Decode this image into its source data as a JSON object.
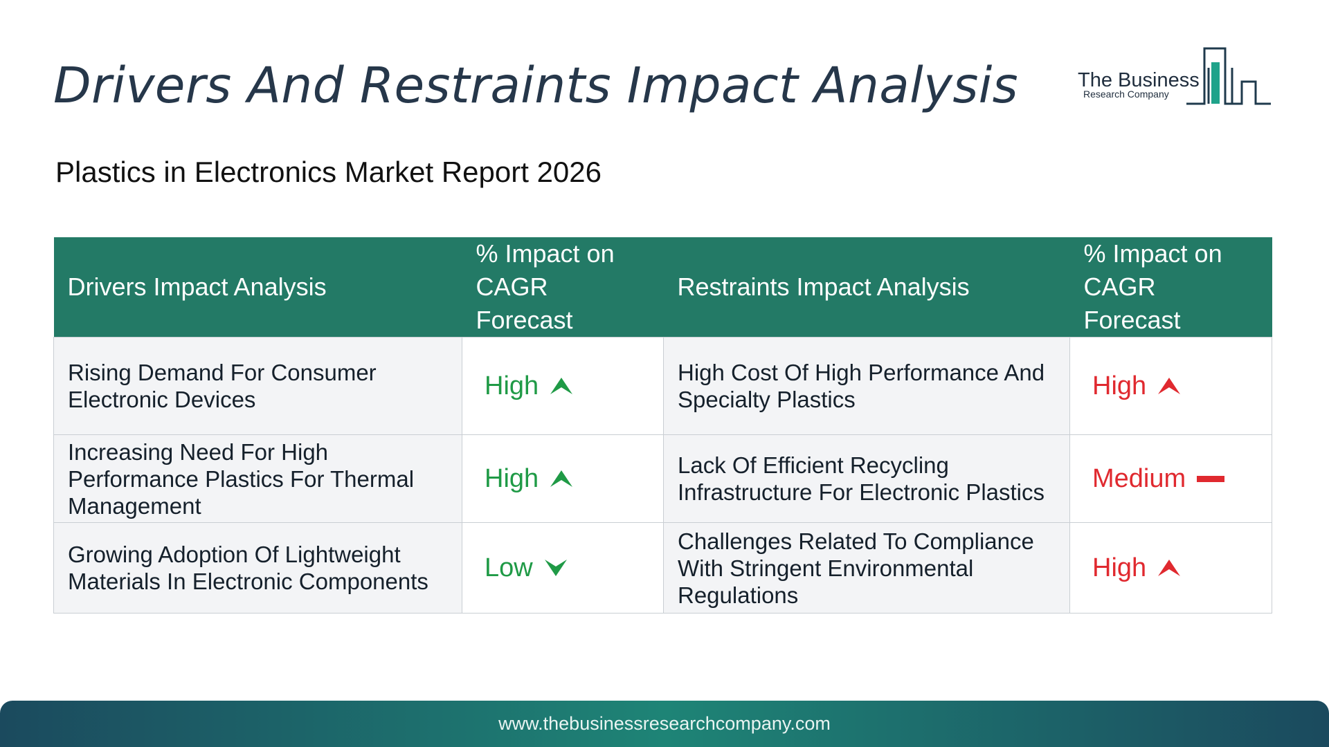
{
  "header": {
    "title": "Drivers And Restraints Impact Analysis",
    "subtitle": "Plastics in Electronics Market Report 2026"
  },
  "logo": {
    "line1": "The Business",
    "line2": "Research Company"
  },
  "table": {
    "columns": [
      "Drivers Impact Analysis",
      "% Impact on CAGR Forecast",
      "Restraints Impact Analysis",
      "% Impact on CAGR Forecast"
    ],
    "rows": [
      {
        "driver": "Rising Demand For Consumer Electronic Devices",
        "driver_impact": "High",
        "driver_icon": "arrow-up-icon",
        "restraint": "High Cost Of High Performance And Specialty Plastics",
        "restraint_impact": "High",
        "restraint_icon": "arrow-up-icon"
      },
      {
        "driver": "Increasing Need For High Performance Plastics For Thermal Management",
        "driver_impact": "High",
        "driver_icon": "arrow-up-icon",
        "restraint": "Lack Of Efficient Recycling Infrastructure For Electronic Plastics",
        "restraint_impact": "Medium",
        "restraint_icon": "dash-icon"
      },
      {
        "driver": "Growing Adoption Of Lightweight Materials In Electronic Components",
        "driver_impact": "Low",
        "driver_icon": "arrow-down-icon",
        "restraint": "Challenges Related To Compliance With Stringent Environmental Regulations",
        "restraint_impact": "High",
        "restraint_icon": "arrow-up-icon"
      }
    ]
  },
  "colors": {
    "header_bg": "#237a66",
    "driver_impact": "#1f9a46",
    "restraint_impact": "#e0292f",
    "title": "#26374a"
  },
  "footer": {
    "url": "www.thebusinessresearchcompany.com"
  }
}
